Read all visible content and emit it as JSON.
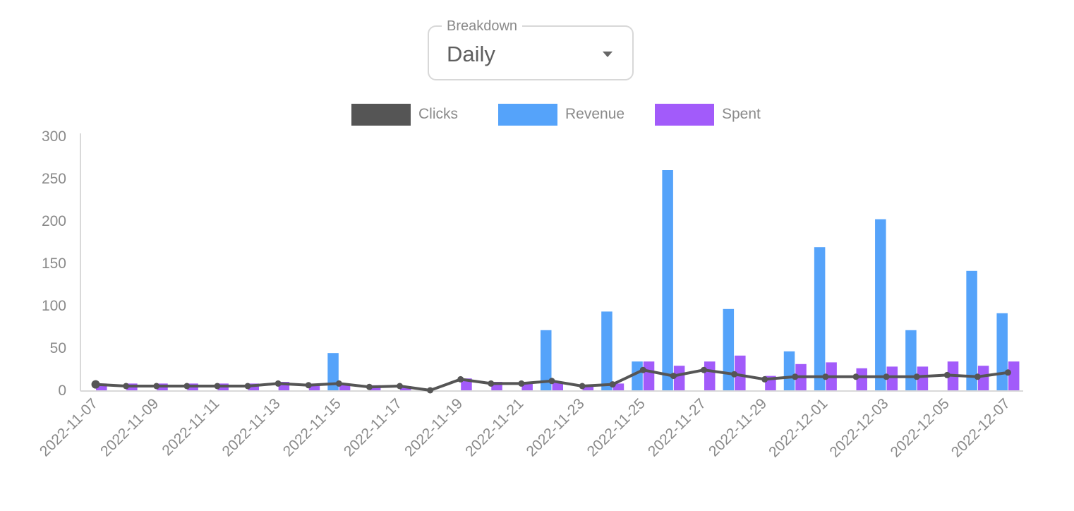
{
  "breakdown": {
    "label": "Breakdown",
    "value": "Daily"
  },
  "colors": {
    "clicks": "#555555",
    "revenue": "#55a3fa",
    "spent": "#a25bfa",
    "axis": "#d9d9d9",
    "tick_text": "#8a8a8a"
  },
  "chart_data": {
    "type": "bar",
    "title": "",
    "xlabel": "",
    "ylabel": "",
    "ylim": [
      0,
      300
    ],
    "yticks": [
      0,
      50,
      100,
      150,
      200,
      250,
      300
    ],
    "legend_position": "top-center",
    "grid": false,
    "x": [
      "2022-11-07",
      "2022-11-08",
      "2022-11-09",
      "2022-11-10",
      "2022-11-11",
      "2022-11-12",
      "2022-11-13",
      "2022-11-14",
      "2022-11-15",
      "2022-11-16",
      "2022-11-17",
      "2022-11-18",
      "2022-11-19",
      "2022-11-20",
      "2022-11-21",
      "2022-11-22",
      "2022-11-23",
      "2022-11-24",
      "2022-11-25",
      "2022-11-26",
      "2022-11-27",
      "2022-11-28",
      "2022-11-29",
      "2022-11-30",
      "2022-12-01",
      "2022-12-02",
      "2022-12-03",
      "2022-12-04",
      "2022-12-05",
      "2022-12-06",
      "2022-12-07"
    ],
    "xtick_labels": [
      "2022-11-07",
      "2022-11-09",
      "2022-11-11",
      "2022-11-13",
      "2022-11-15",
      "2022-11-17",
      "2022-11-19",
      "2022-11-21",
      "2022-11-23",
      "2022-11-25",
      "2022-11-27",
      "2022-11-29",
      "2022-12-01",
      "2022-12-03",
      "2022-12-05",
      "2022-12-07"
    ],
    "series": [
      {
        "name": "Clicks",
        "type": "line",
        "values": [
          7,
          5,
          5,
          5,
          5,
          5,
          8,
          6,
          8,
          4,
          5,
          0,
          13,
          8,
          8,
          11,
          5,
          7,
          24,
          17,
          24,
          19,
          13,
          16,
          16,
          16,
          16,
          16,
          18,
          16,
          21
        ]
      },
      {
        "name": "Revenue",
        "type": "bar",
        "values": [
          0,
          0,
          0,
          0,
          0,
          0,
          0,
          0,
          44,
          0,
          0,
          0,
          0,
          0,
          0,
          71,
          0,
          93,
          34,
          260,
          0,
          96,
          0,
          46,
          169,
          0,
          202,
          71,
          0,
          141,
          91
        ]
      },
      {
        "name": "Spent",
        "type": "bar",
        "values": [
          8,
          8,
          8,
          8,
          8,
          8,
          10,
          8,
          8,
          6,
          5,
          0,
          14,
          10,
          9,
          10,
          5,
          8,
          34,
          29,
          34,
          41,
          17,
          31,
          33,
          26,
          28,
          28,
          34,
          29,
          34
        ]
      }
    ]
  }
}
